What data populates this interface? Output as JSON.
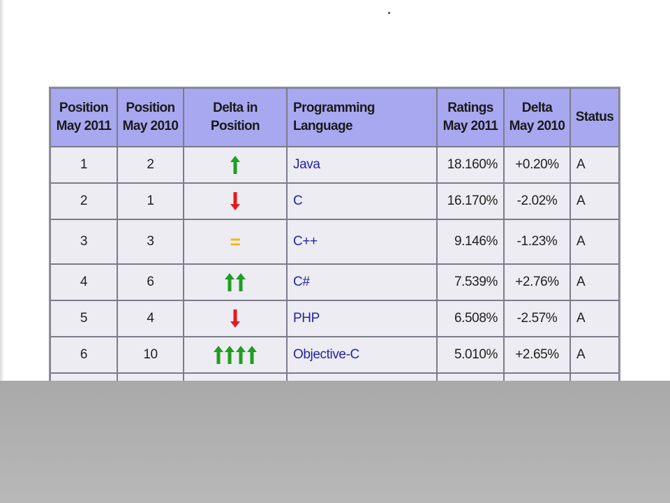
{
  "table": {
    "headers": {
      "pos_2011": [
        "Position",
        "May 2011"
      ],
      "pos_2010": [
        "Position",
        "May 2010"
      ],
      "delta_pos": "Delta in Position",
      "language": "Programming Language",
      "ratings": [
        "Ratings",
        "May 2011"
      ],
      "delta": [
        "Delta",
        "May 2010"
      ],
      "status": "Status"
    },
    "rows": [
      {
        "pos2011": "1",
        "pos2010": "2",
        "delta_icon": "arrow-up-icon",
        "delta_count": 1,
        "language": "Java",
        "rating": "18.160%",
        "delta": "+0.20%",
        "status": "A"
      },
      {
        "pos2011": "2",
        "pos2010": "1",
        "delta_icon": "arrow-down-icon",
        "delta_count": 1,
        "language": "C",
        "rating": "16.170%",
        "delta": "-2.02%",
        "status": "A"
      },
      {
        "pos2011": "3",
        "pos2010": "3",
        "delta_icon": "equals-icon",
        "delta_count": 1,
        "language": "C++",
        "rating": "9.146%",
        "delta": "-1.23%",
        "status": "A"
      },
      {
        "pos2011": "4",
        "pos2010": "6",
        "delta_icon": "arrow-up-icon",
        "delta_count": 2,
        "language": "C#",
        "rating": "7.539%",
        "delta": "+2.76%",
        "status": "A"
      },
      {
        "pos2011": "5",
        "pos2010": "4",
        "delta_icon": "arrow-down-icon",
        "delta_count": 1,
        "language": "PHP",
        "rating": "6.508%",
        "delta": "-2.57%",
        "status": "A"
      },
      {
        "pos2011": "6",
        "pos2010": "10",
        "delta_icon": "arrow-up-icon",
        "delta_count": 4,
        "language": "Objective-C",
        "rating": "5.010%",
        "delta": "+2.65%",
        "status": "A"
      }
    ]
  },
  "colors": {
    "header_bg": "#a8a8f0",
    "cell_bg": "#ececf2",
    "link_text": "#2323a6",
    "arrow_up": "#1f9e1f",
    "arrow_down": "#e31b1b",
    "equals": "#f0b800",
    "overlay": "#a9a9a9"
  }
}
